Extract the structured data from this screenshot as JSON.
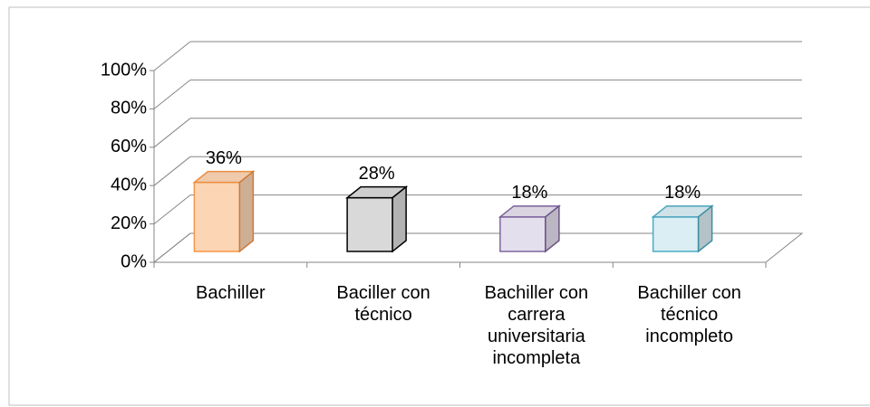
{
  "chart_data": {
    "type": "bar3d",
    "categories": [
      "Bachiller",
      "Baciller con técnico",
      "Bachiller con carrera universitaria incompleta",
      "Bachiller con técnico incompleto"
    ],
    "values": [
      36,
      28,
      18,
      18
    ],
    "value_labels": [
      "36%",
      "28%",
      "18%",
      "18%"
    ],
    "colors": [
      "#fcd5b4",
      "#d9d9d9",
      "#e4dfec",
      "#daeef3"
    ],
    "edge_colors": [
      "#f79646",
      "#000000",
      "#8064a2",
      "#4bacc6"
    ],
    "ylim": [
      0,
      100
    ],
    "yticks": [
      {
        "value": 0,
        "label": "0%"
      },
      {
        "value": 20,
        "label": "20%"
      },
      {
        "value": 40,
        "label": "40%"
      },
      {
        "value": 60,
        "label": "60%"
      },
      {
        "value": 80,
        "label": "80%"
      },
      {
        "value": 100,
        "label": "100%"
      }
    ],
    "grid": true
  }
}
